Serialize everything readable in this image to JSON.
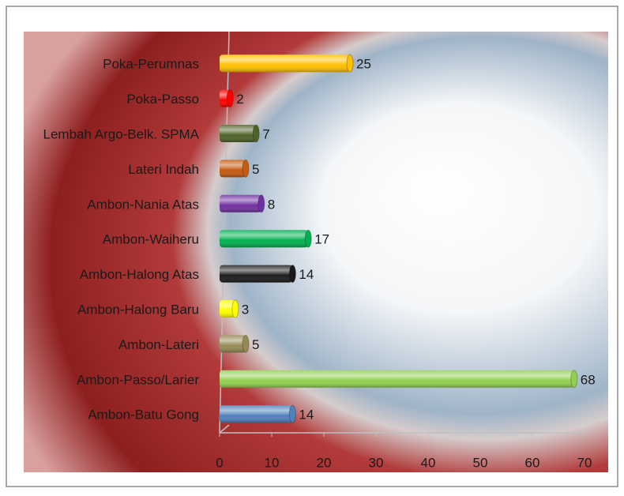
{
  "chart_data": {
    "type": "bar",
    "orientation": "horizontal",
    "categories": [
      "Poka-Perumnas",
      "Poka-Passo",
      "Lembah Argo-Belk. SPMA",
      "Lateri Indah",
      "Ambon-Nania Atas",
      "Ambon-Waiheru",
      "Ambon-Halong Atas",
      "Ambon-Halong Baru",
      "Ambon-Lateri",
      "Ambon-Passo/Larier",
      "Ambon-Batu Gong"
    ],
    "values": [
      25,
      2,
      7,
      5,
      8,
      17,
      14,
      3,
      5,
      68,
      14
    ],
    "colors": [
      "#ffc000",
      "#ff0000",
      "#4f6228",
      "#c55a11",
      "#7030a0",
      "#00b050",
      "#1a1a1a",
      "#ffff00",
      "#948a54",
      "#92d050",
      "#4f81bd"
    ],
    "xlim": [
      0,
      70
    ],
    "xticks": [
      0,
      10,
      20,
      30,
      40,
      50,
      60,
      70
    ]
  }
}
